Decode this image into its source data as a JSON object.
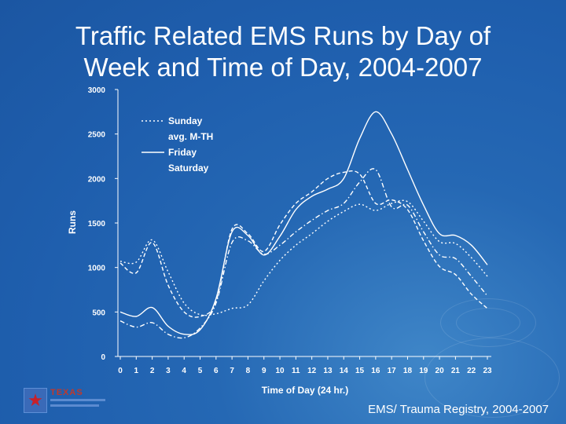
{
  "slide": {
    "title_line1": "Traffic Related EMS Runs by Day of",
    "title_line2": "Week and Time of Day, 2004-2007",
    "footer": "EMS/ Trauma Registry, 2004-2007"
  },
  "logo": {
    "text": "TEXAS"
  },
  "chart_data": {
    "type": "line",
    "title": "Traffic Related EMS Runs by Day of Week and Time of Day, 2004-2007",
    "xlabel": "Time of Day (24 hr.)",
    "ylabel": "Runs",
    "ylim": [
      0,
      3000
    ],
    "yticks": [
      0,
      500,
      1000,
      1500,
      2000,
      2500,
      3000
    ],
    "x": [
      0,
      1,
      2,
      3,
      4,
      5,
      6,
      7,
      8,
      9,
      10,
      11,
      12,
      13,
      14,
      15,
      16,
      17,
      18,
      19,
      20,
      21,
      22,
      23
    ],
    "legend_position": "top-left",
    "series": [
      {
        "name": "Sunday",
        "style": "dotted",
        "values": [
          1070,
          1060,
          1310,
          950,
          600,
          470,
          480,
          540,
          580,
          850,
          1080,
          1250,
          1380,
          1520,
          1630,
          1710,
          1640,
          1720,
          1740,
          1520,
          1290,
          1270,
          1110,
          900
        ]
      },
      {
        "name": "avg. M-TH",
        "style": "dashdot",
        "values": [
          400,
          330,
          380,
          250,
          210,
          320,
          600,
          1280,
          1300,
          1150,
          1250,
          1400,
          1530,
          1640,
          1720,
          1960,
          2100,
          1680,
          1700,
          1400,
          1140,
          1100,
          900,
          680
        ]
      },
      {
        "name": "Friday",
        "style": "solid",
        "values": [
          500,
          450,
          550,
          340,
          250,
          300,
          650,
          1400,
          1360,
          1140,
          1350,
          1650,
          1800,
          1880,
          2000,
          2450,
          2750,
          2500,
          2100,
          1700,
          1380,
          1360,
          1250,
          1030
        ]
      },
      {
        "name": "Saturday",
        "style": "dashed",
        "values": [
          1050,
          940,
          1280,
          800,
          500,
          450,
          620,
          1430,
          1380,
          1180,
          1480,
          1720,
          1850,
          2000,
          2070,
          2050,
          1720,
          1760,
          1650,
          1300,
          1010,
          920,
          700,
          540
        ]
      }
    ]
  }
}
